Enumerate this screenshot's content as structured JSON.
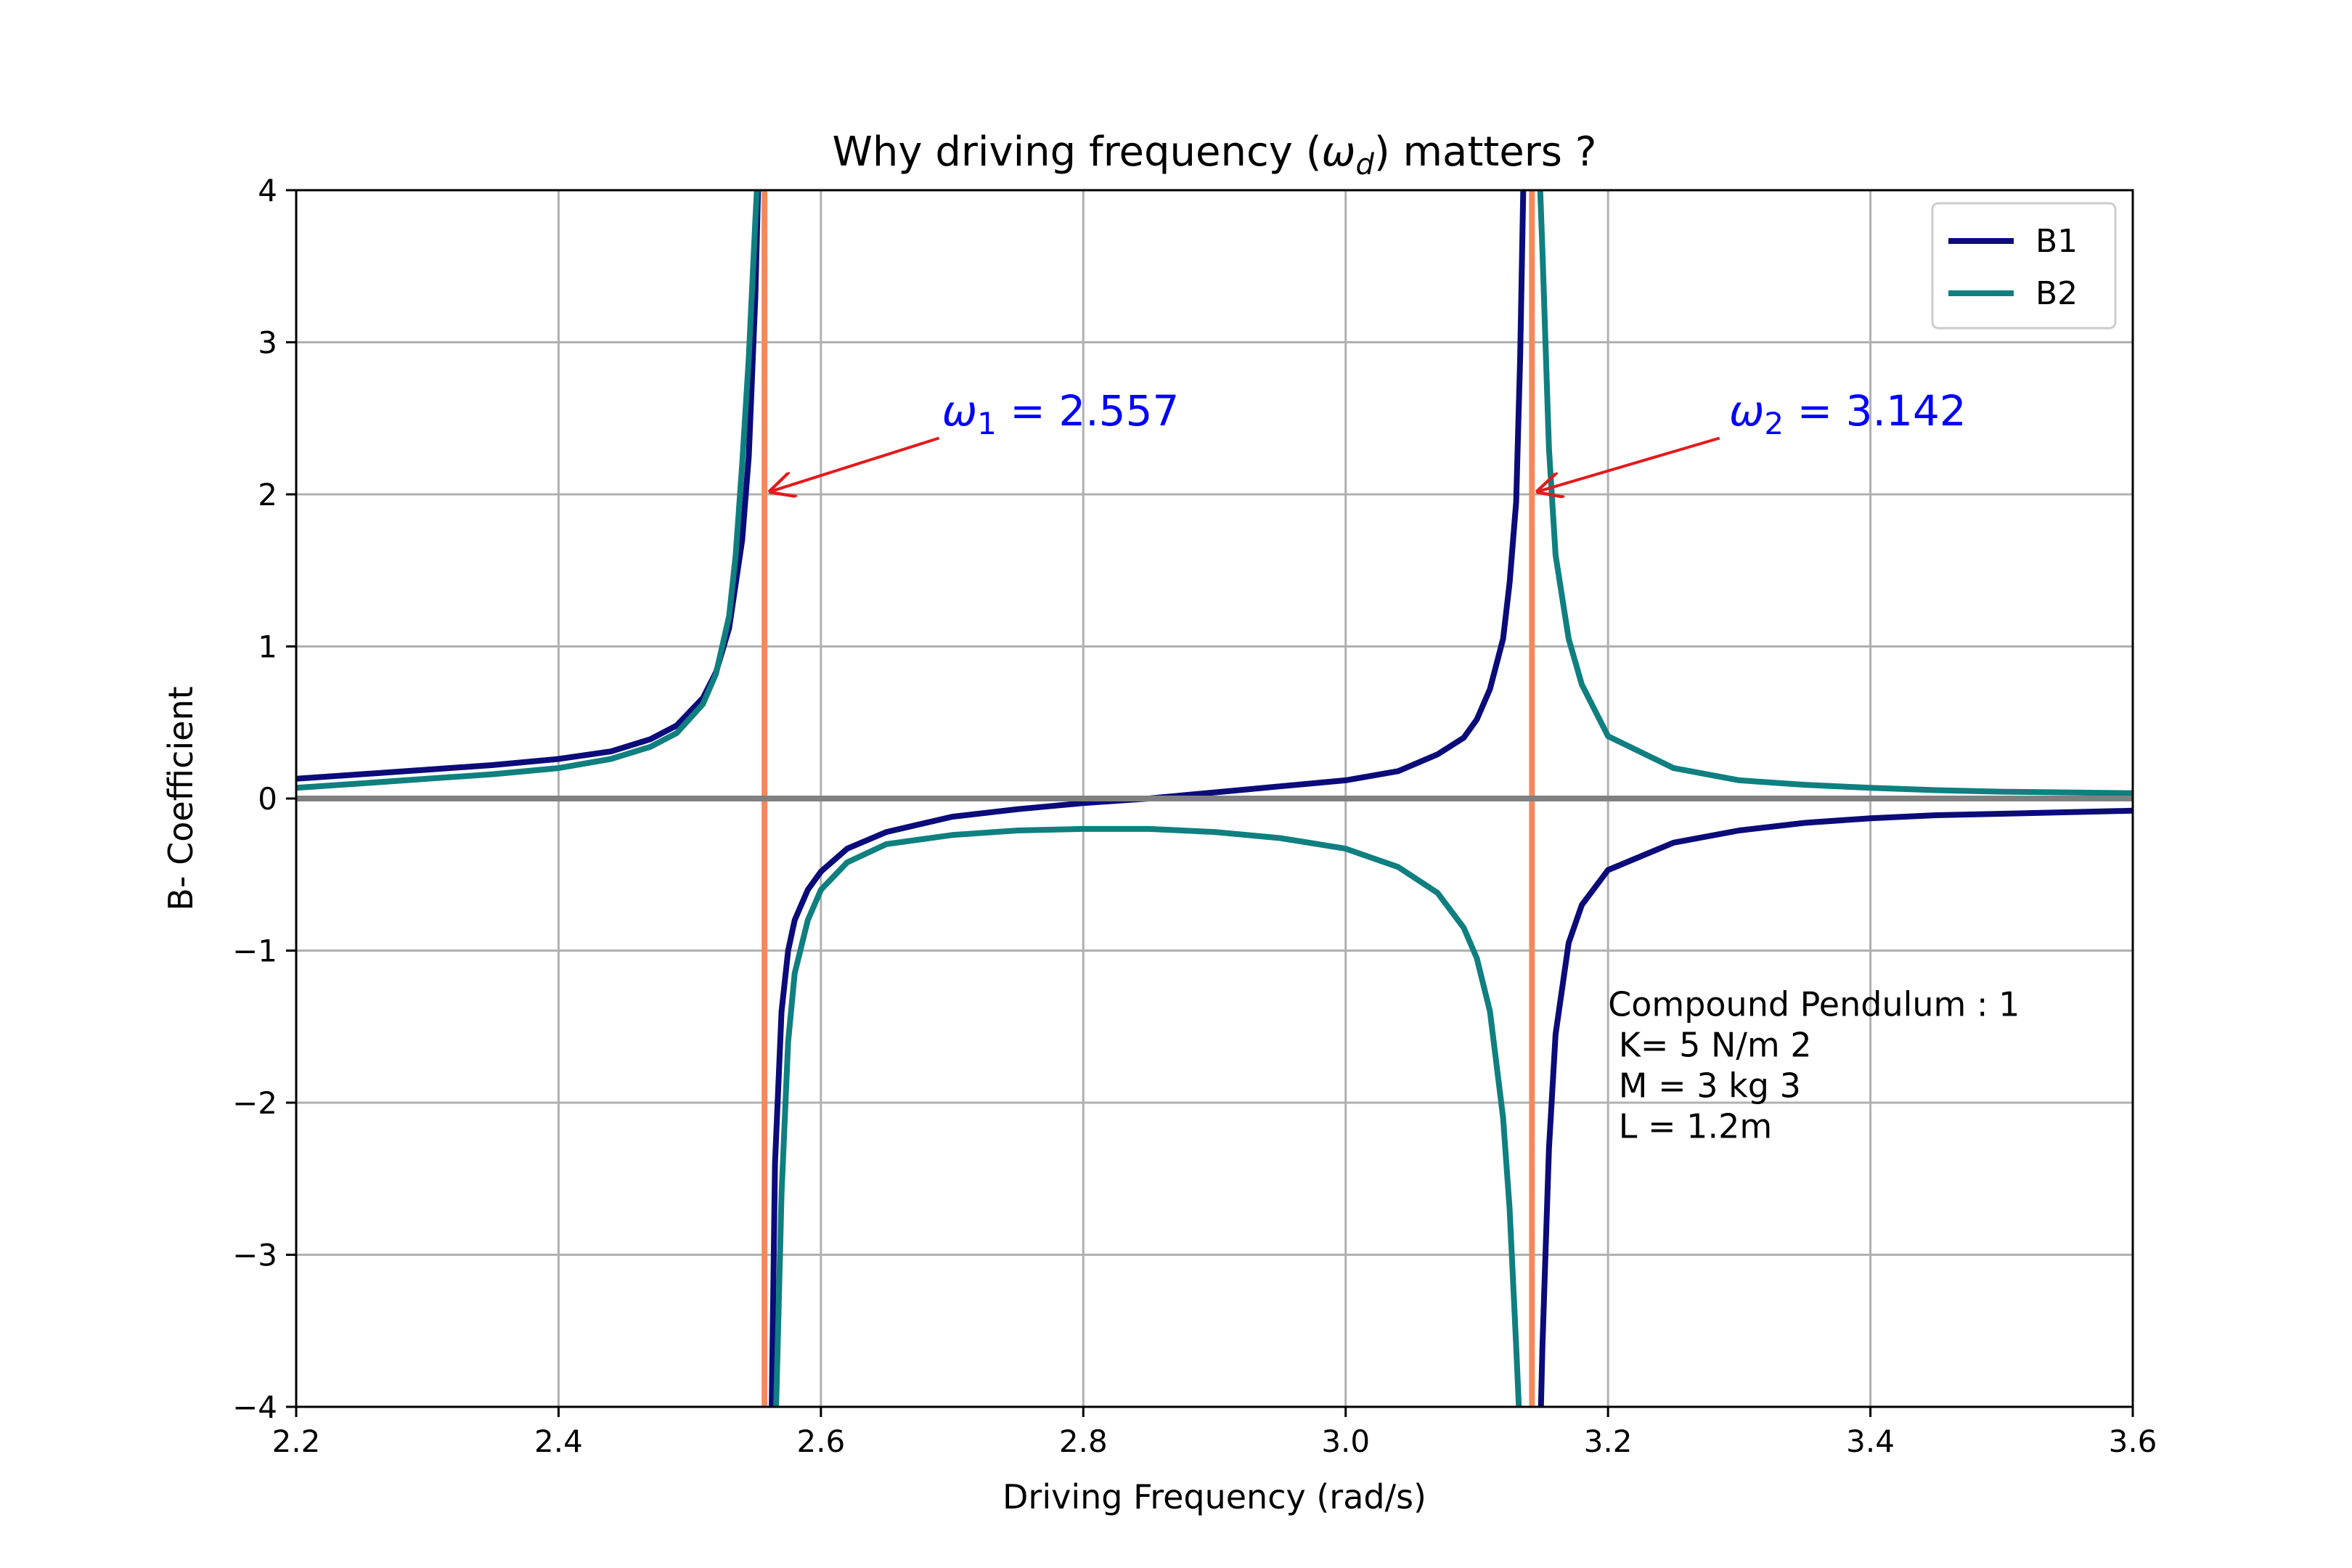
{
  "chart_data": {
    "type": "line",
    "title": "Why driving frequency (ω_d) matters ?",
    "title_parts": {
      "pre": "Why driving frequency (",
      "sym": "ω",
      "sub": "d",
      "post": ") matters ?"
    },
    "xlabel": "Driving Frequency (rad/s)",
    "ylabel": "B- Coefficient",
    "xlim": [
      2.2,
      3.6
    ],
    "ylim": [
      -4,
      4
    ],
    "xticks": [
      "2.2",
      "2.4",
      "2.6",
      "2.8",
      "3.0",
      "3.2",
      "3.4",
      "3.6"
    ],
    "xtick_values": [
      2.2,
      2.4,
      2.6,
      2.8,
      3.0,
      3.2,
      3.4,
      3.6
    ],
    "yticks": [
      "4",
      "3",
      "2",
      "1",
      "0",
      "−1",
      "−2",
      "−3",
      "−4"
    ],
    "ytick_values": [
      4,
      3,
      2,
      1,
      0,
      -1,
      -2,
      -3,
      -4
    ],
    "grid": true,
    "legend": {
      "placement": "top-right",
      "entries": [
        "B1",
        "B2"
      ]
    },
    "series": [
      {
        "name": "B1",
        "color": "#0b0b7a",
        "segments": [
          {
            "x": [
              2.2,
              2.25,
              2.3,
              2.35,
              2.4,
              2.44,
              2.47,
              2.49,
              2.51,
              2.52,
              2.53,
              2.54,
              2.545,
              2.55,
              2.553
            ],
            "y": [
              0.13,
              0.16,
              0.19,
              0.22,
              0.26,
              0.31,
              0.39,
              0.48,
              0.66,
              0.83,
              1.12,
              1.7,
              2.25,
              3.3,
              4.3
            ]
          },
          {
            "x": [
              2.562,
              2.565,
              2.57,
              2.575,
              2.58,
              2.59,
              2.6,
              2.62,
              2.65,
              2.7,
              2.75,
              2.8,
              2.85,
              2.9,
              2.95,
              3.0,
              3.04,
              3.07,
              3.09,
              3.1,
              3.11,
              3.12,
              3.125,
              3.13,
              3.133,
              3.136
            ],
            "y": [
              -4.3,
              -2.4,
              -1.4,
              -1.0,
              -0.8,
              -0.6,
              -0.48,
              -0.33,
              -0.22,
              -0.12,
              -0.07,
              -0.03,
              0.0,
              0.04,
              0.08,
              0.12,
              0.18,
              0.29,
              0.4,
              0.52,
              0.72,
              1.05,
              1.42,
              1.95,
              2.9,
              4.3
            ]
          },
          {
            "x": [
              3.148,
              3.15,
              3.155,
              3.16,
              3.17,
              3.18,
              3.2,
              3.25,
              3.3,
              3.35,
              3.4,
              3.45,
              3.5,
              3.55,
              3.6
            ],
            "y": [
              -4.3,
              -3.6,
              -2.3,
              -1.55,
              -0.95,
              -0.7,
              -0.47,
              -0.29,
              -0.21,
              -0.16,
              -0.13,
              -0.11,
              -0.1,
              -0.09,
              -0.08
            ]
          }
        ]
      },
      {
        "name": "B2",
        "color": "#0f7f7f",
        "segments": [
          {
            "x": [
              2.2,
              2.25,
              2.3,
              2.35,
              2.4,
              2.44,
              2.47,
              2.49,
              2.51,
              2.52,
              2.53,
              2.535,
              2.54,
              2.545,
              2.55,
              2.553
            ],
            "y": [
              0.07,
              0.1,
              0.13,
              0.16,
              0.2,
              0.26,
              0.34,
              0.43,
              0.62,
              0.82,
              1.2,
              1.6,
              2.2,
              2.9,
              3.8,
              4.3
            ]
          },
          {
            "x": [
              2.565,
              2.57,
              2.575,
              2.58,
              2.59,
              2.6,
              2.62,
              2.65,
              2.7,
              2.75,
              2.8,
              2.85,
              2.9,
              2.95,
              3.0,
              3.04,
              3.07,
              3.09,
              3.1,
              3.11,
              3.12,
              3.125,
              3.13,
              3.132,
              3.135
            ],
            "y": [
              -4.3,
              -2.6,
              -1.6,
              -1.15,
              -0.8,
              -0.6,
              -0.42,
              -0.3,
              -0.24,
              -0.21,
              -0.2,
              -0.2,
              -0.22,
              -0.26,
              -0.33,
              -0.45,
              -0.62,
              -0.85,
              -1.05,
              -1.4,
              -2.1,
              -2.7,
              -3.6,
              -4.0,
              -4.3
            ]
          },
          {
            "x": [
              3.147,
              3.15,
              3.155,
              3.16,
              3.17,
              3.18,
              3.2,
              3.25,
              3.3,
              3.35,
              3.4,
              3.45,
              3.5,
              3.55,
              3.6
            ],
            "y": [
              4.3,
              3.6,
              2.3,
              1.6,
              1.05,
              0.75,
              0.41,
              0.2,
              0.12,
              0.09,
              0.07,
              0.055,
              0.045,
              0.04,
              0.035
            ]
          }
        ]
      }
    ],
    "vertical_lines": [
      {
        "x": 2.557,
        "color": "#f4895a"
      },
      {
        "x": 3.142,
        "color": "#f4895a"
      }
    ],
    "baseline": {
      "y": 0,
      "color": "#808080"
    },
    "annotations": [
      {
        "sym": "ω",
        "sub": "1",
        "text": " = 2.557",
        "text_x": 2.7,
        "text_y": 2.55,
        "arrow_from": [
          2.69,
          2.37
        ],
        "arrow_to": [
          2.562,
          2.02
        ],
        "text_color": "#0000ff",
        "arrow_color": "#e31a1c"
      },
      {
        "sym": "ω",
        "sub": "2",
        "text": " = 3.142",
        "text_x": 3.3,
        "text_y": 2.55,
        "arrow_from": [
          3.285,
          2.37
        ],
        "arrow_to": [
          3.147,
          2.02
        ],
        "text_color": "#0000ff",
        "arrow_color": "#e31a1c"
      }
    ],
    "info_box": {
      "lines": [
        "Compound Pendulum : 1",
        " K= 5 N/m 2",
        " M = 3 kg 3",
        " L = 1.2m"
      ],
      "x": 3.2,
      "y": -1.2
    }
  }
}
